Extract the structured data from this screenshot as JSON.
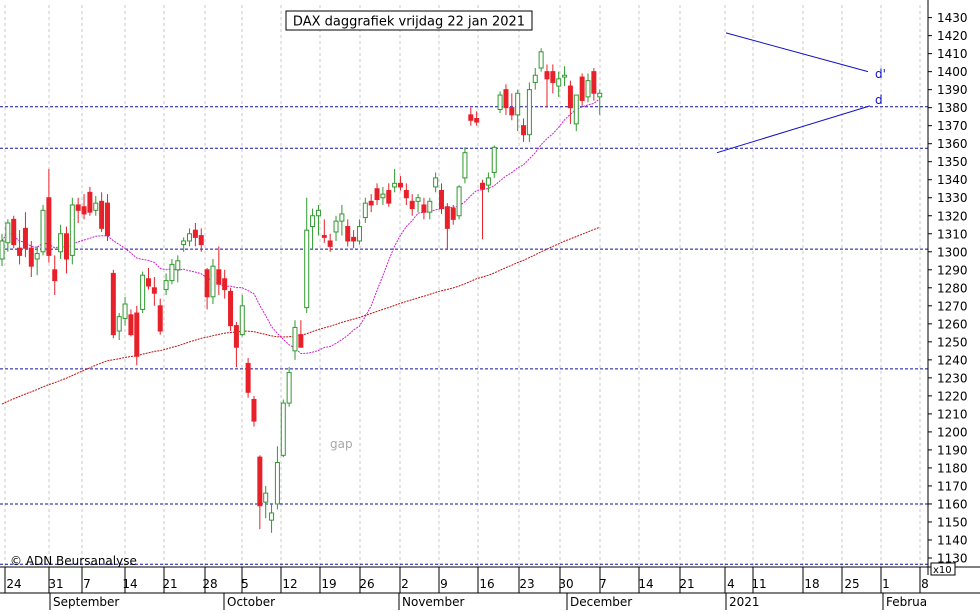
{
  "chart_data": {
    "type": "candlestick",
    "title": "DAX daggrafiek vrijdag 22 jan 2021",
    "copyright": "© ADN Beursanalyse",
    "annotation_gap": "gap",
    "label_d_prime": "d'",
    "label_d": "d",
    "scale_label": "x10",
    "ylim": [
      1125,
      1437
    ],
    "y_ticks": [
      1130,
      1140,
      1150,
      1160,
      1170,
      1180,
      1190,
      1200,
      1210,
      1220,
      1230,
      1240,
      1250,
      1260,
      1270,
      1280,
      1290,
      1300,
      1310,
      1320,
      1330,
      1340,
      1350,
      1360,
      1370,
      1380,
      1390,
      1400,
      1410,
      1420,
      1430
    ],
    "day_ticks": [
      "24",
      "31",
      "7",
      "14",
      "21",
      "28",
      "5",
      "12",
      "19",
      "26",
      "2",
      "9",
      "16",
      "23",
      "30",
      "7",
      "14",
      "21",
      "4",
      "11",
      "18",
      "25",
      "1",
      "8"
    ],
    "month_labels": [
      "September",
      "October",
      "November",
      "December",
      "2021",
      "Februa"
    ],
    "colors": {
      "up": "#2e9a2e",
      "down": "#e8202a",
      "hline": "#1010a0",
      "ma_short": "#d020d0",
      "ma_long": "#c01010",
      "grid": "#c8c8c8",
      "trend": "#1010c0"
    },
    "horizontal_levels": [
      1380.5,
      1357.5,
      1301.5,
      1235,
      1160,
      1126.5
    ],
    "candles": [
      {
        "o": 1296,
        "h": 1310,
        "l": 1292,
        "c": 1306
      },
      {
        "o": 1305,
        "h": 1318,
        "l": 1300,
        "c": 1316
      },
      {
        "o": 1318,
        "h": 1320,
        "l": 1302,
        "c": 1304
      },
      {
        "o": 1302,
        "h": 1312,
        "l": 1293,
        "c": 1298
      },
      {
        "o": 1313,
        "h": 1322,
        "l": 1297,
        "c": 1302
      },
      {
        "o": 1302,
        "h": 1306,
        "l": 1286,
        "c": 1292
      },
      {
        "o": 1296,
        "h": 1303,
        "l": 1287,
        "c": 1299
      },
      {
        "o": 1300,
        "h": 1326,
        "l": 1298,
        "c": 1323
      },
      {
        "o": 1330,
        "h": 1346,
        "l": 1294,
        "c": 1298
      },
      {
        "o": 1290,
        "h": 1298,
        "l": 1276,
        "c": 1284
      },
      {
        "o": 1300,
        "h": 1315,
        "l": 1296,
        "c": 1310
      },
      {
        "o": 1310,
        "h": 1314,
        "l": 1288,
        "c": 1296
      },
      {
        "o": 1298,
        "h": 1330,
        "l": 1293,
        "c": 1326
      },
      {
        "o": 1326,
        "h": 1330,
        "l": 1316,
        "c": 1323
      },
      {
        "o": 1325,
        "h": 1332,
        "l": 1318,
        "c": 1321
      },
      {
        "o": 1333,
        "h": 1336,
        "l": 1320,
        "c": 1322
      },
      {
        "o": 1323,
        "h": 1331,
        "l": 1320,
        "c": 1327
      },
      {
        "o": 1328,
        "h": 1333,
        "l": 1311,
        "c": 1313
      },
      {
        "o": 1327,
        "h": 1332,
        "l": 1306,
        "c": 1309
      },
      {
        "o": 1288,
        "h": 1290,
        "l": 1252,
        "c": 1254
      },
      {
        "o": 1256,
        "h": 1266,
        "l": 1251,
        "c": 1264
      },
      {
        "o": 1263,
        "h": 1275,
        "l": 1259,
        "c": 1271
      },
      {
        "o": 1265,
        "h": 1268,
        "l": 1253,
        "c": 1254
      },
      {
        "o": 1266,
        "h": 1270,
        "l": 1237,
        "c": 1242
      },
      {
        "o": 1268,
        "h": 1289,
        "l": 1266,
        "c": 1287
      },
      {
        "o": 1285,
        "h": 1291,
        "l": 1279,
        "c": 1281
      },
      {
        "o": 1280,
        "h": 1286,
        "l": 1270,
        "c": 1277
      },
      {
        "o": 1270,
        "h": 1274,
        "l": 1254,
        "c": 1256
      },
      {
        "o": 1279,
        "h": 1288,
        "l": 1276,
        "c": 1284
      },
      {
        "o": 1284,
        "h": 1296,
        "l": 1282,
        "c": 1293
      },
      {
        "o": 1290,
        "h": 1298,
        "l": 1283,
        "c": 1295
      },
      {
        "o": 1304,
        "h": 1308,
        "l": 1300,
        "c": 1306
      },
      {
        "o": 1306,
        "h": 1313,
        "l": 1303,
        "c": 1310
      },
      {
        "o": 1312,
        "h": 1316,
        "l": 1303,
        "c": 1308
      },
      {
        "o": 1309,
        "h": 1313,
        "l": 1300,
        "c": 1304
      },
      {
        "o": 1290,
        "h": 1291,
        "l": 1268,
        "c": 1275
      },
      {
        "o": 1275,
        "h": 1296,
        "l": 1271,
        "c": 1292
      },
      {
        "o": 1290,
        "h": 1303,
        "l": 1276,
        "c": 1282
      },
      {
        "o": 1285,
        "h": 1290,
        "l": 1274,
        "c": 1279
      },
      {
        "o": 1278,
        "h": 1280,
        "l": 1256,
        "c": 1259
      },
      {
        "o": 1259,
        "h": 1261,
        "l": 1236,
        "c": 1247
      },
      {
        "o": 1254,
        "h": 1276,
        "l": 1253,
        "c": 1270
      },
      {
        "o": 1238,
        "h": 1241,
        "l": 1219,
        "c": 1222
      },
      {
        "o": 1218,
        "h": 1220,
        "l": 1203,
        "c": 1206
      },
      {
        "o": 1186,
        "h": 1187,
        "l": 1146,
        "c": 1159
      },
      {
        "o": 1161,
        "h": 1170,
        "l": 1152,
        "c": 1166
      },
      {
        "o": 1151,
        "h": 1160,
        "l": 1144,
        "c": 1155
      },
      {
        "o": 1160,
        "h": 1192,
        "l": 1157,
        "c": 1183
      },
      {
        "o": 1187,
        "h": 1218,
        "l": 1186,
        "c": 1216
      },
      {
        "o": 1216,
        "h": 1236,
        "l": 1214,
        "c": 1233
      },
      {
        "o": 1245,
        "h": 1262,
        "l": 1240,
        "c": 1258
      },
      {
        "o": 1254,
        "h": 1262,
        "l": 1247,
        "c": 1247
      },
      {
        "o": 1269,
        "h": 1330,
        "l": 1266,
        "c": 1312
      },
      {
        "o": 1314,
        "h": 1324,
        "l": 1301,
        "c": 1320
      },
      {
        "o": 1320,
        "h": 1326,
        "l": 1309,
        "c": 1323
      },
      {
        "o": 1309,
        "h": 1318,
        "l": 1305,
        "c": 1308
      },
      {
        "o": 1306,
        "h": 1310,
        "l": 1300,
        "c": 1303
      },
      {
        "o": 1311,
        "h": 1320,
        "l": 1306,
        "c": 1317
      },
      {
        "o": 1317,
        "h": 1326,
        "l": 1309,
        "c": 1321
      },
      {
        "o": 1314,
        "h": 1318,
        "l": 1303,
        "c": 1306
      },
      {
        "o": 1308,
        "h": 1312,
        "l": 1302,
        "c": 1306
      },
      {
        "o": 1306,
        "h": 1318,
        "l": 1304,
        "c": 1314
      },
      {
        "o": 1319,
        "h": 1330,
        "l": 1316,
        "c": 1327
      },
      {
        "o": 1328,
        "h": 1332,
        "l": 1322,
        "c": 1326
      },
      {
        "o": 1335,
        "h": 1338,
        "l": 1326,
        "c": 1329
      },
      {
        "o": 1330,
        "h": 1336,
        "l": 1326,
        "c": 1332
      },
      {
        "o": 1334,
        "h": 1338,
        "l": 1325,
        "c": 1327
      },
      {
        "o": 1336,
        "h": 1346,
        "l": 1333,
        "c": 1338
      },
      {
        "o": 1338,
        "h": 1342,
        "l": 1334,
        "c": 1336
      },
      {
        "o": 1334,
        "h": 1338,
        "l": 1326,
        "c": 1330
      },
      {
        "o": 1328,
        "h": 1332,
        "l": 1320,
        "c": 1324
      },
      {
        "o": 1328,
        "h": 1332,
        "l": 1322,
        "c": 1330
      },
      {
        "o": 1326,
        "h": 1330,
        "l": 1318,
        "c": 1322
      },
      {
        "o": 1322,
        "h": 1330,
        "l": 1318,
        "c": 1328
      },
      {
        "o": 1336,
        "h": 1344,
        "l": 1333,
        "c": 1341
      },
      {
        "o": 1334,
        "h": 1338,
        "l": 1321,
        "c": 1324
      },
      {
        "o": 1325,
        "h": 1327,
        "l": 1301,
        "c": 1313
      },
      {
        "o": 1324,
        "h": 1326,
        "l": 1315,
        "c": 1318
      },
      {
        "o": 1320,
        "h": 1337,
        "l": 1318,
        "c": 1336
      },
      {
        "o": 1341,
        "h": 1358,
        "l": 1338,
        "c": 1355
      },
      {
        "o": 1376,
        "h": 1380,
        "l": 1370,
        "c": 1373
      },
      {
        "o": 1374,
        "h": 1378,
        "l": 1370,
        "c": 1372
      },
      {
        "o": 1338,
        "h": 1340,
        "l": 1307,
        "c": 1335
      },
      {
        "o": 1337,
        "h": 1344,
        "l": 1333,
        "c": 1341
      },
      {
        "o": 1344,
        "h": 1359,
        "l": 1341,
        "c": 1358
      },
      {
        "o": 1379,
        "h": 1389,
        "l": 1377,
        "c": 1387
      },
      {
        "o": 1390,
        "h": 1393,
        "l": 1376,
        "c": 1380
      },
      {
        "o": 1380,
        "h": 1388,
        "l": 1373,
        "c": 1376
      },
      {
        "o": 1376,
        "h": 1390,
        "l": 1367,
        "c": 1388
      },
      {
        "o": 1370,
        "h": 1374,
        "l": 1361,
        "c": 1365
      },
      {
        "o": 1365,
        "h": 1394,
        "l": 1361,
        "c": 1390
      },
      {
        "o": 1394,
        "h": 1402,
        "l": 1390,
        "c": 1398
      },
      {
        "o": 1402,
        "h": 1413,
        "l": 1400,
        "c": 1411
      },
      {
        "o": 1400,
        "h": 1404,
        "l": 1380,
        "c": 1396
      },
      {
        "o": 1400,
        "h": 1404,
        "l": 1388,
        "c": 1394
      },
      {
        "o": 1392,
        "h": 1400,
        "l": 1386,
        "c": 1396
      },
      {
        "o": 1397,
        "h": 1403,
        "l": 1392,
        "c": 1398
      },
      {
        "o": 1392,
        "h": 1395,
        "l": 1371,
        "c": 1380
      },
      {
        "o": 1371,
        "h": 1384,
        "l": 1367,
        "c": 1387
      },
      {
        "o": 1397,
        "h": 1399,
        "l": 1381,
        "c": 1384
      },
      {
        "o": 1386,
        "h": 1399,
        "l": 1383,
        "c": 1395
      },
      {
        "o": 1400,
        "h": 1402,
        "l": 1384,
        "c": 1388
      },
      {
        "o": 1386,
        "h": 1390,
        "l": 1376,
        "c": 1388
      }
    ]
  }
}
